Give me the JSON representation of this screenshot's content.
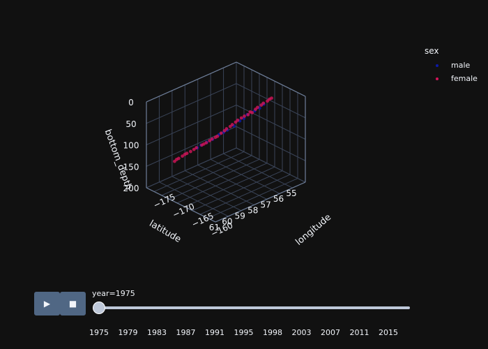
{
  "chart_data": {
    "type": "scatter3d",
    "axes": {
      "x": {
        "label": "longitude",
        "ticks": [
          "-175",
          "-170",
          "-165",
          "-160"
        ]
      },
      "y": {
        "label": "latitude",
        "ticks": [
          "55",
          "56",
          "57",
          "58",
          "59",
          "60",
          "61"
        ]
      },
      "z": {
        "label": "bottom_depth",
        "ticks": [
          "0",
          "50",
          "100",
          "150",
          "200"
        ],
        "reversed": true
      }
    },
    "legend": {
      "title": "sex",
      "placement": "top-right",
      "items": [
        {
          "name": "male",
          "color": "#0d1aa8"
        },
        {
          "name": "female",
          "color": "#d4145a"
        }
      ]
    },
    "series": [
      {
        "name": "male",
        "points": [
          [
            -165.2,
            56.8,
            42
          ],
          [
            -165.8,
            57.2,
            48
          ],
          [
            -166.4,
            57.6,
            60
          ],
          [
            -166.9,
            57.9,
            70
          ],
          [
            -167.3,
            58.3,
            76
          ],
          [
            -168.1,
            58.7,
            85
          ],
          [
            -168.8,
            59.0,
            95
          ],
          [
            -169.3,
            59.3,
            100
          ],
          [
            -170.1,
            59.8,
            110
          ],
          [
            -164.9,
            56.5,
            38
          ],
          [
            -164.5,
            56.3,
            30
          ],
          [
            -166.0,
            57.4,
            55
          ],
          [
            -167.6,
            58.5,
            80
          ],
          [
            -169.8,
            59.6,
            105
          ]
        ]
      },
      {
        "name": "female",
        "points": [
          [
            -164.2,
            56.1,
            24
          ],
          [
            -164.8,
            56.4,
            32
          ],
          [
            -165.3,
            56.7,
            40
          ],
          [
            -165.7,
            57.0,
            44
          ],
          [
            -166.2,
            57.3,
            52
          ],
          [
            -166.6,
            57.7,
            58
          ],
          [
            -167.0,
            58.0,
            66
          ],
          [
            -167.5,
            58.3,
            74
          ],
          [
            -167.9,
            58.6,
            82
          ],
          [
            -168.4,
            58.9,
            90
          ],
          [
            -168.9,
            59.2,
            96
          ],
          [
            -169.4,
            59.5,
            102
          ],
          [
            -170.0,
            59.9,
            108
          ],
          [
            -170.5,
            60.2,
            115
          ],
          [
            -171.0,
            60.5,
            120
          ],
          [
            -171.6,
            60.8,
            128
          ],
          [
            -172.0,
            61.0,
            134
          ],
          [
            -165.1,
            56.6,
            36
          ],
          [
            -165.5,
            56.9,
            46
          ],
          [
            -166.8,
            57.8,
            62
          ],
          [
            -168.2,
            58.8,
            88
          ],
          [
            -169.6,
            59.6,
            104
          ],
          [
            -170.8,
            60.4,
            118
          ],
          [
            -164.6,
            56.3,
            28
          ],
          [
            -163.8,
            55.9,
            18
          ],
          [
            -166.3,
            57.5,
            54
          ],
          [
            -167.2,
            58.1,
            70
          ],
          [
            -168.6,
            59.1,
            92
          ],
          [
            -169.1,
            59.4,
            99
          ],
          [
            -171.3,
            60.6,
            124
          ],
          [
            -165.9,
            57.1,
            50
          ],
          [
            -167.7,
            58.4,
            78
          ],
          [
            -170.3,
            60.0,
            112
          ],
          [
            -171.8,
            60.9,
            130
          ],
          [
            -164.0,
            56.0,
            20
          ]
        ]
      }
    ]
  },
  "animation": {
    "label": "year=1975",
    "steps": [
      "1975",
      "1979",
      "1983",
      "1987",
      "1991",
      "1995",
      "1998",
      "2003",
      "2007",
      "2011",
      "2015"
    ],
    "play_label": "▶",
    "stop_label": "■"
  }
}
